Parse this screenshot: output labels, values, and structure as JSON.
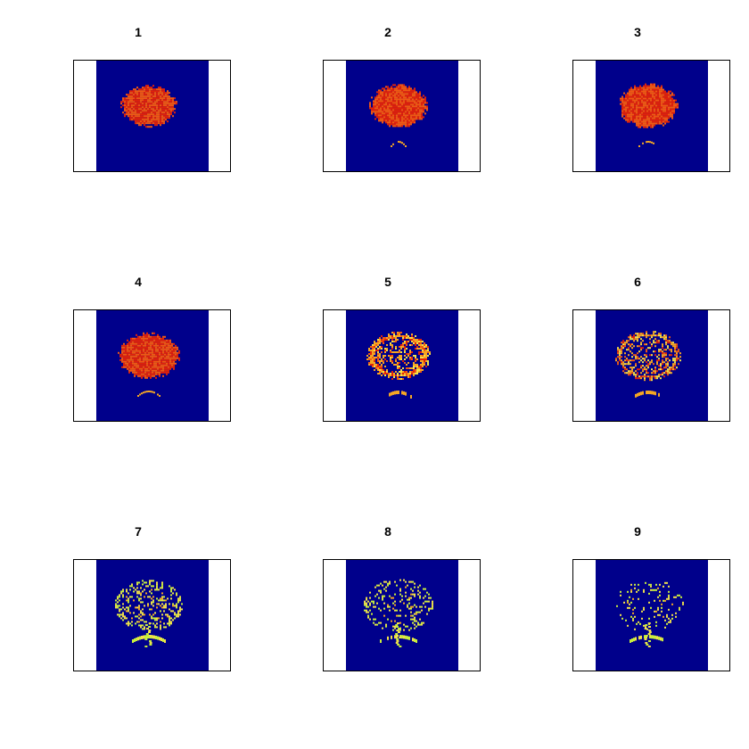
{
  "panels": [
    {
      "title": "1",
      "stage": 1
    },
    {
      "title": "2",
      "stage": 2
    },
    {
      "title": "3",
      "stage": 3
    },
    {
      "title": "4",
      "stage": 4
    },
    {
      "title": "5",
      "stage": 5
    },
    {
      "title": "6",
      "stage": 6
    },
    {
      "title": "7",
      "stage": 7
    },
    {
      "title": "8",
      "stage": 8
    },
    {
      "title": "9",
      "stage": 9
    }
  ],
  "colors": {
    "background": "#00008b",
    "hot": "#e0220a",
    "warm": "#f05a12",
    "orange": "#f5a623",
    "yellow": "#f2e24a",
    "lime": "#c8f03c"
  }
}
